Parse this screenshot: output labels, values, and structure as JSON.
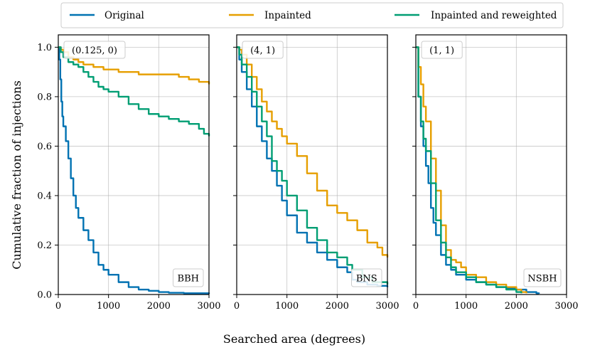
{
  "figure": {
    "ylabel": "Cumulative fraction of injections",
    "xlabel": "Searched area (degrees)"
  },
  "legend": {
    "placement": "top",
    "entries": [
      {
        "label": "Original",
        "color": "#0072b2"
      },
      {
        "label": "Inpainted",
        "color": "#e69f00"
      },
      {
        "label": "Inpainted and reweighted",
        "color": "#009e73"
      }
    ]
  },
  "chart_data": [
    {
      "type": "line",
      "panel": "left",
      "corner_label": "(0.125, 0)",
      "category_label": "BBH",
      "xlim": [
        0,
        3000
      ],
      "ylim": [
        0,
        1.05
      ],
      "xticks": [
        "0",
        "1000",
        "2000",
        "3000"
      ],
      "yticks": [
        "0.0",
        "0.2",
        "0.4",
        "0.6",
        "0.8",
        "1.0"
      ],
      "grid": true,
      "series": [
        {
          "name": "Original",
          "x": [
            0,
            20,
            40,
            60,
            80,
            100,
            150,
            200,
            250,
            300,
            350,
            400,
            500,
            600,
            700,
            800,
            900,
            1000,
            1200,
            1400,
            1600,
            1800,
            2000,
            2200,
            2500,
            3000
          ],
          "y": [
            1.0,
            0.95,
            0.87,
            0.78,
            0.72,
            0.68,
            0.62,
            0.55,
            0.47,
            0.4,
            0.35,
            0.31,
            0.26,
            0.22,
            0.17,
            0.12,
            0.1,
            0.08,
            0.05,
            0.03,
            0.02,
            0.015,
            0.01,
            0.007,
            0.005,
            0.003
          ]
        },
        {
          "name": "Inpainted",
          "x": [
            0,
            50,
            100,
            200,
            300,
            400,
            500,
            700,
            900,
            1000,
            1200,
            1400,
            1600,
            1800,
            2000,
            2200,
            2400,
            2600,
            2800,
            2900,
            3000
          ],
          "y": [
            1.0,
            0.99,
            0.98,
            0.96,
            0.95,
            0.94,
            0.93,
            0.92,
            0.91,
            0.91,
            0.9,
            0.9,
            0.89,
            0.89,
            0.89,
            0.89,
            0.88,
            0.87,
            0.86,
            0.86,
            0.85
          ]
        },
        {
          "name": "Inpainted and reweighted",
          "x": [
            0,
            50,
            100,
            200,
            300,
            400,
            500,
            600,
            700,
            800,
            900,
            1000,
            1200,
            1400,
            1600,
            1800,
            2000,
            2200,
            2400,
            2600,
            2800,
            2900,
            3000
          ],
          "y": [
            1.0,
            0.98,
            0.96,
            0.94,
            0.93,
            0.92,
            0.9,
            0.88,
            0.86,
            0.84,
            0.83,
            0.82,
            0.8,
            0.77,
            0.75,
            0.73,
            0.72,
            0.71,
            0.7,
            0.69,
            0.67,
            0.65,
            0.64
          ]
        }
      ]
    },
    {
      "type": "line",
      "panel": "middle",
      "corner_label": "(4, 1)",
      "category_label": "BNS",
      "xlim": [
        0,
        3000
      ],
      "ylim": [
        0,
        1.05
      ],
      "xticks": [
        "0",
        "1000",
        "2000",
        "3000"
      ],
      "grid": true,
      "series": [
        {
          "name": "Original",
          "x": [
            0,
            50,
            100,
            200,
            300,
            400,
            500,
            600,
            700,
            800,
            900,
            1000,
            1200,
            1400,
            1600,
            1800,
            2000,
            2200,
            2300,
            2400,
            2600,
            2800,
            3000
          ],
          "y": [
            1.0,
            0.95,
            0.9,
            0.83,
            0.76,
            0.68,
            0.62,
            0.55,
            0.5,
            0.44,
            0.38,
            0.32,
            0.25,
            0.21,
            0.17,
            0.14,
            0.11,
            0.09,
            0.06,
            0.05,
            0.04,
            0.035,
            0.03
          ]
        },
        {
          "name": "Inpainted",
          "x": [
            0,
            50,
            100,
            200,
            300,
            400,
            500,
            600,
            700,
            800,
            900,
            1000,
            1200,
            1400,
            1600,
            1800,
            2000,
            2200,
            2400,
            2600,
            2800,
            2900,
            3000
          ],
          "y": [
            1.0,
            0.99,
            0.97,
            0.93,
            0.88,
            0.83,
            0.78,
            0.74,
            0.7,
            0.67,
            0.64,
            0.61,
            0.56,
            0.49,
            0.42,
            0.36,
            0.33,
            0.3,
            0.26,
            0.21,
            0.19,
            0.16,
            0.15
          ]
        },
        {
          "name": "Inpainted and reweighted",
          "x": [
            0,
            50,
            100,
            200,
            300,
            400,
            500,
            600,
            700,
            800,
            900,
            1000,
            1200,
            1400,
            1600,
            1800,
            2000,
            2200,
            2300,
            2500,
            2700,
            3000
          ],
          "y": [
            1.0,
            0.97,
            0.93,
            0.88,
            0.82,
            0.76,
            0.7,
            0.64,
            0.54,
            0.5,
            0.46,
            0.4,
            0.34,
            0.27,
            0.22,
            0.17,
            0.15,
            0.12,
            0.1,
            0.07,
            0.05,
            0.04
          ]
        }
      ]
    },
    {
      "type": "line",
      "panel": "right",
      "corner_label": "(1, 1)",
      "category_label": "NSBH",
      "xlim": [
        0,
        3000
      ],
      "ylim": [
        0,
        1.05
      ],
      "xticks": [
        "0",
        "1000",
        "2000",
        "3000"
      ],
      "grid": true,
      "series": [
        {
          "name": "Original",
          "x": [
            0,
            50,
            100,
            150,
            200,
            250,
            300,
            350,
            400,
            500,
            600,
            700,
            800,
            1000,
            1200,
            1400,
            1600,
            1800,
            2000,
            2200,
            2400,
            2450
          ],
          "y": [
            1.0,
            0.8,
            0.68,
            0.6,
            0.52,
            0.45,
            0.35,
            0.29,
            0.24,
            0.16,
            0.12,
            0.1,
            0.08,
            0.06,
            0.05,
            0.04,
            0.03,
            0.025,
            0.02,
            0.01,
            0.005,
            0.003
          ]
        },
        {
          "name": "Inpainted",
          "x": [
            0,
            50,
            100,
            150,
            200,
            300,
            400,
            500,
            600,
            700,
            800,
            900,
            1000,
            1200,
            1400,
            1600,
            1800,
            2000,
            2100,
            2200
          ],
          "y": [
            1.0,
            0.92,
            0.85,
            0.76,
            0.7,
            0.55,
            0.42,
            0.28,
            0.18,
            0.14,
            0.13,
            0.11,
            0.08,
            0.07,
            0.05,
            0.04,
            0.03,
            0.02,
            0.01,
            0.005
          ]
        },
        {
          "name": "Inpainted and reweighted",
          "x": [
            0,
            50,
            100,
            150,
            200,
            300,
            400,
            500,
            600,
            700,
            800,
            1000,
            1200,
            1400,
            1600,
            1800,
            2000,
            2100
          ],
          "y": [
            1.0,
            0.8,
            0.7,
            0.63,
            0.58,
            0.45,
            0.3,
            0.21,
            0.15,
            0.11,
            0.09,
            0.07,
            0.05,
            0.04,
            0.03,
            0.02,
            0.01,
            0.005
          ]
        }
      ]
    }
  ]
}
